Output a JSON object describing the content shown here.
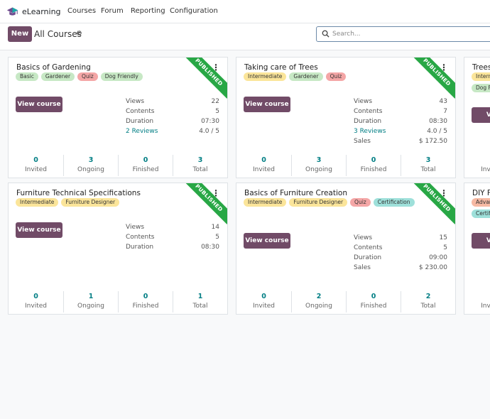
{
  "app": {
    "name": "eLearning"
  },
  "nav": [
    "Courses",
    "Forum",
    "Reporting",
    "Configuration"
  ],
  "controls": {
    "new_label": "New",
    "breadcrumb": "All Courses",
    "search_placeholder": "Search..."
  },
  "published_label": "PUBLISHED",
  "view_course_label": "View course",
  "footer_labels": [
    "Invited",
    "Ongoing",
    "Finished",
    "Total"
  ],
  "courses": [
    {
      "title": "Basics of Gardening",
      "tags": [
        {
          "label": "Basic",
          "color": "green"
        },
        {
          "label": "Gardener",
          "color": "green"
        },
        {
          "label": "Quiz",
          "color": "red"
        },
        {
          "label": "Dog Friendly",
          "color": "green"
        }
      ],
      "stats": [
        {
          "label": "Views",
          "value": "22"
        },
        {
          "label": "Contents",
          "value": "5"
        },
        {
          "label": "Duration",
          "value": "07:30"
        },
        {
          "label": "2 Reviews",
          "value": "4.0 / 5"
        }
      ],
      "footer": [
        "0",
        "3",
        "0",
        "3"
      ]
    },
    {
      "title": "Taking care of Trees",
      "tags": [
        {
          "label": "Intermediate",
          "color": "yellow"
        },
        {
          "label": "Gardener",
          "color": "green"
        },
        {
          "label": "Quiz",
          "color": "red"
        }
      ],
      "stats": [
        {
          "label": "Views",
          "value": "43"
        },
        {
          "label": "Contents",
          "value": "7"
        },
        {
          "label": "Duration",
          "value": "08:30"
        },
        {
          "label": "3 Reviews",
          "value": "4.0 / 5"
        },
        {
          "label": "Sales",
          "value": "$ 172.50"
        }
      ],
      "footer": [
        "0",
        "3",
        "0",
        "3"
      ]
    },
    {
      "title": "Trees,",
      "tags": [
        {
          "label": "Intern",
          "color": "yellow"
        },
        {
          "label": "Dog F",
          "color": "green"
        }
      ],
      "view_partial": "View",
      "footer_partial": "Inv"
    },
    {
      "title": "Furniture Technical Specifications",
      "tags": [
        {
          "label": "Intermediate",
          "color": "yellow"
        },
        {
          "label": "Furniture Designer",
          "color": "yellow"
        }
      ],
      "stats": [
        {
          "label": "Views",
          "value": "14"
        },
        {
          "label": "Contents",
          "value": "5"
        },
        {
          "label": "Duration",
          "value": "08:30"
        }
      ],
      "footer": [
        "0",
        "1",
        "0",
        "1"
      ]
    },
    {
      "title": "Basics of Furniture Creation",
      "tags": [
        {
          "label": "Intermediate",
          "color": "yellow"
        },
        {
          "label": "Furniture Designer",
          "color": "yellow"
        },
        {
          "label": "Quiz",
          "color": "red"
        },
        {
          "label": "Certification",
          "color": "teal"
        }
      ],
      "stats": [
        {
          "label": "Views",
          "value": "15"
        },
        {
          "label": "Contents",
          "value": "5"
        },
        {
          "label": "Duration",
          "value": "09:00"
        },
        {
          "label": "Sales",
          "value": "$ 230.00"
        }
      ],
      "footer": [
        "0",
        "2",
        "0",
        "2"
      ]
    },
    {
      "title": "DIY F",
      "tags": [
        {
          "label": "Advan",
          "color": "orange"
        },
        {
          "label": "Certifi",
          "color": "teal"
        }
      ],
      "view_partial": "View",
      "footer_partial": "Inv"
    }
  ]
}
